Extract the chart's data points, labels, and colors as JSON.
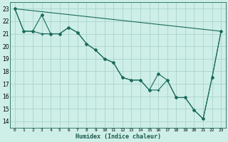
{
  "xlabel": "Humidex (Indice chaleur)",
  "background_color": "#ceeee8",
  "grid_color": "#aad4cc",
  "line_color": "#1a6b5a",
  "xlim": [
    -0.5,
    23.5
  ],
  "ylim": [
    13.5,
    23.5
  ],
  "yticks": [
    14,
    15,
    16,
    17,
    18,
    19,
    20,
    21,
    22,
    23
  ],
  "xticks": [
    0,
    1,
    2,
    3,
    4,
    5,
    6,
    7,
    8,
    9,
    10,
    11,
    12,
    13,
    14,
    15,
    16,
    17,
    18,
    19,
    20,
    21,
    22,
    23
  ],
  "series1_x": [
    0,
    1,
    2,
    3,
    4,
    5,
    6,
    7,
    8,
    9,
    10,
    11,
    12,
    13,
    14,
    15,
    16,
    17,
    18,
    19,
    20,
    21,
    22,
    23
  ],
  "series1_y": [
    23,
    21.2,
    21.2,
    22.5,
    21.0,
    21.0,
    21.5,
    21.1,
    20.2,
    19.7,
    19.0,
    18.7,
    17.5,
    17.3,
    17.3,
    16.5,
    17.8,
    17.3,
    15.9,
    15.9,
    14.9,
    14.2,
    17.5,
    21.2
  ],
  "series2_x": [
    0,
    1,
    2,
    3,
    4,
    5,
    6,
    7,
    8,
    9,
    10,
    11,
    12,
    13,
    14,
    15,
    16,
    17,
    18,
    19,
    20,
    21,
    22,
    23
  ],
  "series2_y": [
    23,
    21.2,
    21.2,
    21.0,
    21.0,
    21.0,
    21.5,
    21.1,
    20.2,
    19.7,
    19.0,
    18.7,
    17.5,
    17.3,
    17.3,
    16.5,
    16.5,
    17.3,
    15.9,
    15.9,
    14.9,
    14.2,
    17.5,
    21.2
  ],
  "series3_x": [
    0,
    23
  ],
  "series3_y": [
    23,
    21.2
  ]
}
